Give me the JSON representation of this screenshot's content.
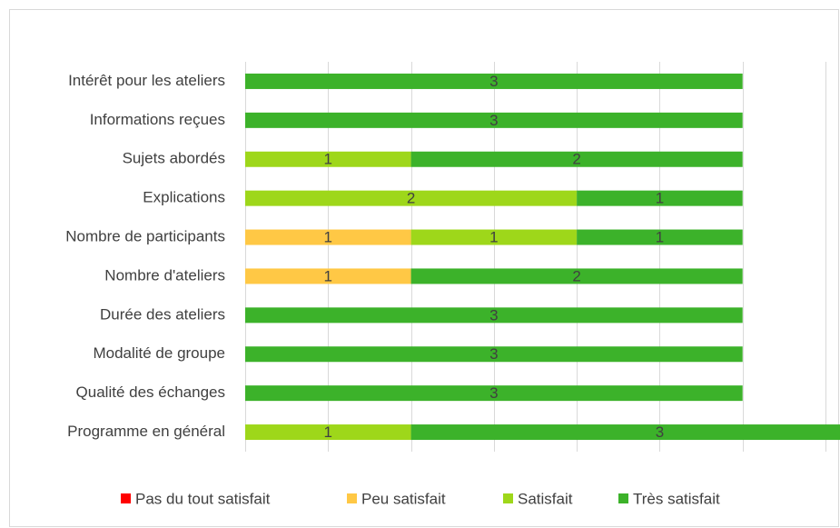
{
  "chart_data": {
    "type": "bar",
    "orientation": "horizontal",
    "stacked": true,
    "categories": [
      "Intérêt pour les ateliers",
      "Informations reçues",
      "Sujets abordés",
      "Explications",
      "Nombre de participants",
      "Nombre d'ateliers",
      "Durée des ateliers",
      "Modalité de groupe",
      "Qualité des échanges",
      "Programme en général"
    ],
    "series": [
      {
        "name": "Pas du tout satisfait",
        "color": "#ff0000",
        "values": [
          null,
          null,
          null,
          null,
          null,
          null,
          null,
          null,
          null,
          null
        ]
      },
      {
        "name": "Peu satisfait",
        "color": "#ffc845",
        "values": [
          null,
          null,
          null,
          null,
          1,
          1,
          null,
          null,
          null,
          null
        ]
      },
      {
        "name": "Satisfait",
        "color": "#9ed71a",
        "values": [
          null,
          null,
          1,
          2,
          1,
          null,
          null,
          null,
          null,
          1
        ]
      },
      {
        "name": "Très satisfait",
        "color": "#3cb22a",
        "values": [
          3,
          3,
          2,
          1,
          1,
          2,
          3,
          3,
          3,
          3
        ]
      }
    ],
    "xlim": [
      0,
      3.5
    ],
    "xticks": [
      0,
      0.5,
      1,
      1.5,
      2,
      2.5,
      3,
      3.5
    ],
    "grid": true,
    "legend": "bottom"
  }
}
